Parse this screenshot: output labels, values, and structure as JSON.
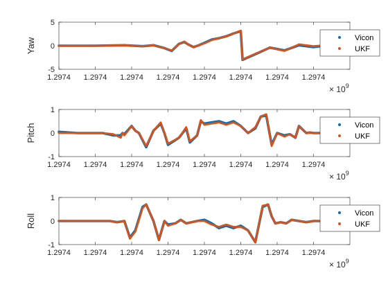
{
  "chart_data": [
    {
      "type": "line",
      "ylabel": "Yaw",
      "ylim": [
        -5,
        5
      ],
      "yticks": [
        "5",
        "0",
        "-5"
      ],
      "xticks": [
        "1.2974",
        "1.2974",
        "1.2974",
        "1.2974",
        "1.2974",
        "1.2974",
        "1.2974",
        "1.2974"
      ],
      "xlim": [
        0,
        8
      ],
      "exponent_base": "× 10",
      "exponent_power": "9",
      "legend": "right",
      "series": [
        {
          "name": "Vicon",
          "color": "#0072BD",
          "x": [
            0,
            1.0,
            1.8,
            2.3,
            2.6,
            2.9,
            3.1,
            3.3,
            3.45,
            3.55,
            3.7,
            3.85,
            4.0,
            4.2,
            4.4,
            4.6,
            4.8,
            5.0,
            5.05,
            5.4,
            5.8,
            6.2,
            6.6,
            7.0,
            7.5,
            8.0
          ],
          "y": [
            0,
            0,
            0.1,
            -0.1,
            0.1,
            -0.5,
            -1.1,
            0.4,
            0.8,
            0.3,
            -0.3,
            0.1,
            0.6,
            1.3,
            1.6,
            2.0,
            2.6,
            3.1,
            -3.0,
            -1.8,
            -0.4,
            -1.0,
            0.1,
            -0.3,
            0.2,
            0.0
          ]
        },
        {
          "name": "UKF",
          "color": "#D95319",
          "x": [
            0,
            1.0,
            1.8,
            2.3,
            2.6,
            2.9,
            3.1,
            3.3,
            3.45,
            3.55,
            3.7,
            3.85,
            4.0,
            4.2,
            4.4,
            4.6,
            4.8,
            5.0,
            5.05,
            5.4,
            5.8,
            6.2,
            6.6,
            7.0,
            7.5,
            8.0
          ],
          "y": [
            0,
            0,
            0.1,
            -0.1,
            0.1,
            -0.5,
            -1.0,
            0.4,
            0.9,
            0.3,
            -0.3,
            0.1,
            0.5,
            1.2,
            1.6,
            2.0,
            2.6,
            3.2,
            -2.9,
            -1.7,
            -0.4,
            -1.1,
            0.3,
            -0.1,
            0.2,
            0.2
          ]
        }
      ]
    },
    {
      "type": "line",
      "ylabel": "Pitch",
      "ylim": [
        -1,
        1
      ],
      "yticks": [
        "1",
        "0",
        "-1"
      ],
      "xticks": [
        "1.2974",
        "1.2974",
        "1.2974",
        "1.2974",
        "1.2974",
        "1.2974",
        "1.2974",
        "1.2974"
      ],
      "xlim": [
        0,
        8
      ],
      "exponent_base": "× 10",
      "exponent_power": "9",
      "legend": "right",
      "series": [
        {
          "name": "Vicon",
          "color": "#0072BD",
          "x": [
            0,
            0.5,
            1.2,
            1.5,
            1.7,
            1.75,
            1.8,
            2.0,
            2.1,
            2.2,
            2.4,
            2.6,
            2.8,
            2.9,
            3.0,
            3.3,
            3.5,
            3.6,
            3.8,
            3.9,
            4.0,
            4.2,
            4.4,
            4.6,
            4.8,
            5.0,
            5.2,
            5.4,
            5.55,
            5.7,
            5.85,
            6.0,
            6.2,
            6.35,
            6.5,
            6.6,
            6.8,
            6.9,
            7.0,
            7.5,
            8.0
          ],
          "y": [
            0.05,
            0,
            0,
            -0.1,
            -0.1,
            0.0,
            -0.05,
            0.3,
            0.1,
            0.0,
            -0.6,
            0.1,
            0.4,
            0.0,
            -0.5,
            -0.2,
            0.2,
            -0.4,
            -0.1,
            0.5,
            0.4,
            0.45,
            0.5,
            0.4,
            0.5,
            0.3,
            0.0,
            0.2,
            0.7,
            0.75,
            -0.5,
            0.0,
            -0.1,
            -0.05,
            -0.2,
            0.3,
            0.0,
            0.02,
            0.0,
            0.0,
            0.0
          ]
        },
        {
          "name": "UKF",
          "color": "#D95319",
          "x": [
            0,
            0.5,
            1.2,
            1.5,
            1.7,
            1.75,
            1.8,
            2.0,
            2.1,
            2.2,
            2.4,
            2.6,
            2.8,
            2.9,
            3.0,
            3.3,
            3.5,
            3.6,
            3.8,
            3.9,
            4.0,
            4.2,
            4.4,
            4.6,
            4.8,
            5.0,
            5.2,
            5.4,
            5.55,
            5.7,
            5.85,
            6.0,
            6.2,
            6.35,
            6.5,
            6.6,
            6.8,
            6.9,
            7.0,
            7.5
          ],
          "y": [
            0,
            0,
            0,
            -0.05,
            -0.2,
            0.0,
            -0.1,
            0.3,
            0.1,
            0.0,
            -0.55,
            0.1,
            0.45,
            0.0,
            -0.45,
            -0.2,
            0.25,
            -0.35,
            -0.1,
            0.55,
            0.35,
            0.4,
            0.45,
            0.35,
            0.45,
            0.3,
            0.0,
            0.25,
            0.7,
            0.8,
            -0.55,
            0.0,
            -0.15,
            -0.05,
            -0.2,
            0.3,
            0.0,
            0.02,
            0.0,
            0.0
          ]
        }
      ]
    },
    {
      "type": "line",
      "ylabel": "Roll",
      "ylim": [
        -1,
        1
      ],
      "yticks": [
        "1",
        "0",
        "-1"
      ],
      "xticks": [
        "1.2974",
        "1.2974",
        "1.2974",
        "1.2974",
        "1.2974",
        "1.2974",
        "1.2974",
        "1.2974"
      ],
      "xlim": [
        0,
        8
      ],
      "exponent_base": "× 10",
      "exponent_power": "9",
      "legend": "right",
      "series": [
        {
          "name": "Vicon",
          "color": "#0072BD",
          "x": [
            0,
            1.0,
            1.4,
            1.6,
            1.8,
            1.95,
            2.1,
            2.3,
            2.4,
            2.6,
            2.75,
            2.9,
            3.0,
            3.2,
            3.35,
            3.5,
            3.8,
            4.0,
            4.2,
            4.4,
            4.6,
            4.8,
            5.0,
            5.2,
            5.4,
            5.6,
            5.75,
            5.85,
            5.95,
            6.1,
            6.25,
            6.4,
            6.6,
            6.8,
            7.0,
            7.5,
            8.0
          ],
          "y": [
            0,
            0,
            0.0,
            -0.05,
            0.0,
            -0.7,
            -0.4,
            0.6,
            0.7,
            0.0,
            -0.8,
            0.0,
            -0.15,
            -0.1,
            0.05,
            -0.1,
            0.0,
            0.05,
            -0.1,
            -0.3,
            -0.2,
            -0.3,
            -0.2,
            -0.4,
            -0.9,
            0.6,
            0.7,
            0.2,
            -0.1,
            -0.05,
            -0.1,
            0.05,
            0.0,
            -0.05,
            0.0,
            0.0,
            0.0
          ]
        },
        {
          "name": "UKF",
          "color": "#D95319",
          "x": [
            0,
            1.0,
            1.4,
            1.6,
            1.8,
            1.95,
            2.1,
            2.3,
            2.4,
            2.6,
            2.75,
            2.9,
            3.0,
            3.2,
            3.35,
            3.5,
            3.8,
            4.0,
            4.2,
            4.4,
            4.6,
            4.8,
            5.0,
            5.2,
            5.4,
            5.6,
            5.75,
            5.85,
            5.95,
            6.1,
            6.25,
            6.4,
            6.6,
            6.8,
            7.0,
            7.5
          ],
          "y": [
            0,
            0,
            0.0,
            -0.05,
            0.0,
            -0.75,
            -0.45,
            0.55,
            0.7,
            0.0,
            -0.8,
            0.0,
            -0.2,
            -0.1,
            0.05,
            -0.1,
            0.0,
            0.0,
            -0.15,
            -0.25,
            -0.15,
            -0.25,
            -0.25,
            -0.4,
            -0.9,
            0.65,
            0.7,
            0.2,
            -0.1,
            -0.05,
            -0.1,
            0.05,
            0.0,
            -0.05,
            0.0,
            0.0
          ]
        }
      ]
    }
  ]
}
